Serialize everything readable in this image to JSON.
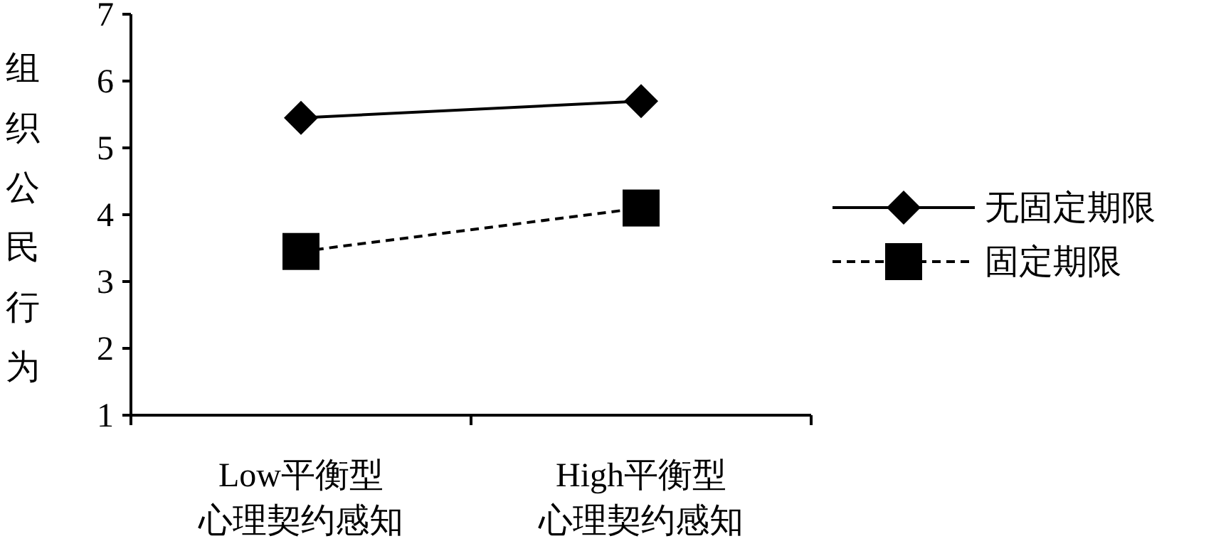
{
  "chart_data": {
    "type": "line",
    "ylabel": "组织公民行为",
    "categories": [
      "Low平衡型心理契约感知",
      "High平衡型心理契约感知"
    ],
    "series": [
      {
        "name": "无固定期限",
        "color": "#000000",
        "marker": "diamond",
        "line_style": "solid",
        "values": [
          5.45,
          5.7
        ]
      },
      {
        "name": "固定期限",
        "color": "#000000",
        "marker": "square",
        "line_style": "dashed",
        "values": [
          3.45,
          4.1
        ]
      }
    ],
    "ylim": [
      1,
      7
    ],
    "yticks": [
      1,
      2,
      3,
      4,
      5,
      6,
      7
    ],
    "grid": false,
    "legend": "right"
  }
}
